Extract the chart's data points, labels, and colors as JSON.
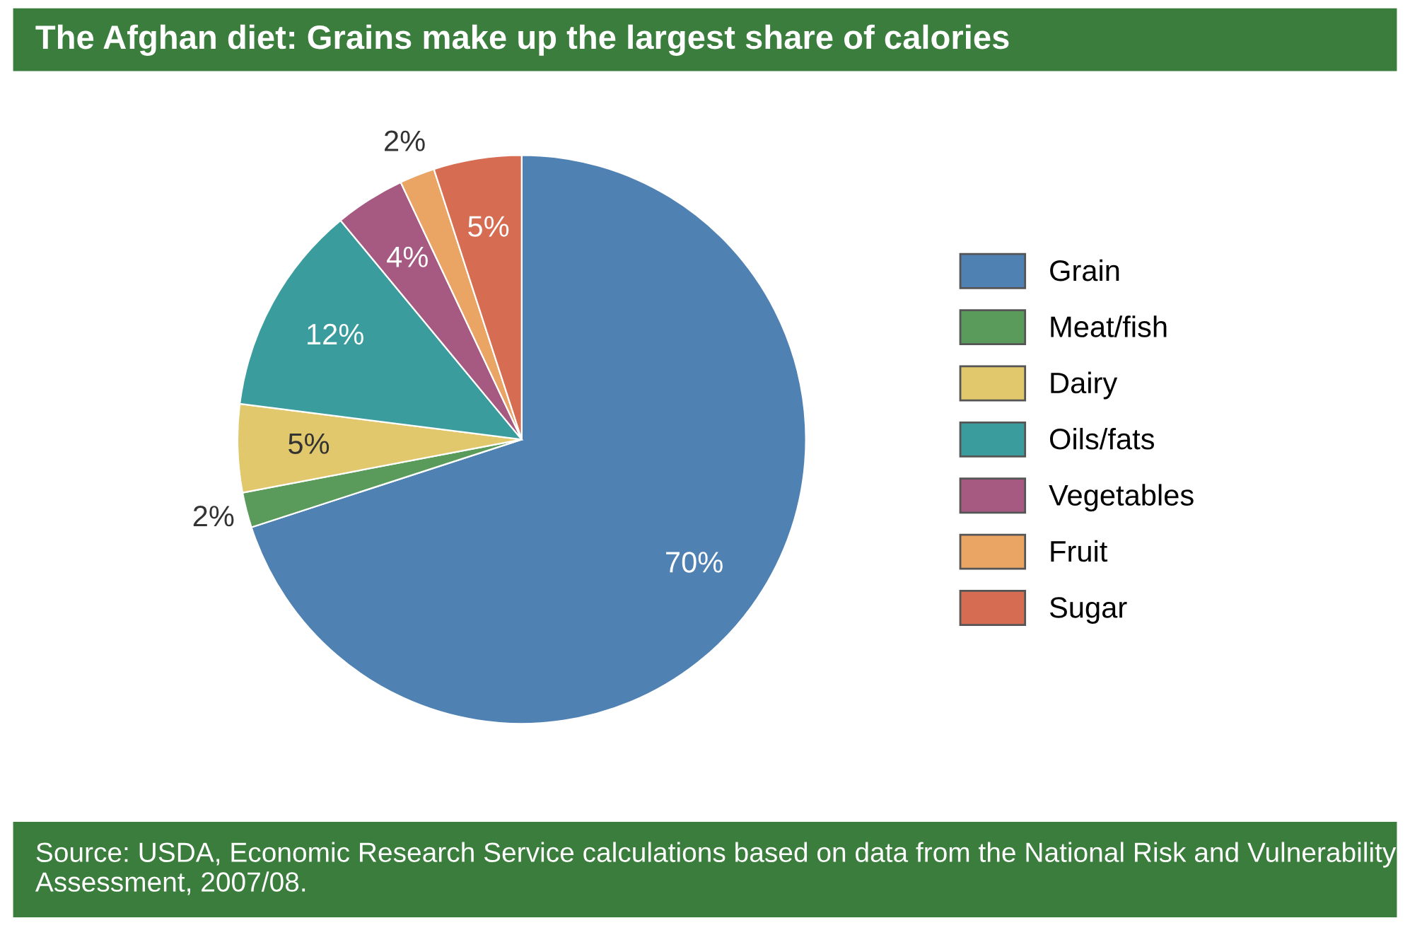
{
  "chart_data": {
    "type": "pie",
    "title": "The Afghan diet: Grains make up the largest share of calories",
    "categories": [
      "Grain",
      "Meat/fish",
      "Dairy",
      "Oils/fats",
      "Vegetables",
      "Fruit",
      "Sugar"
    ],
    "values": [
      70,
      2,
      5,
      12,
      4,
      2,
      5
    ],
    "colors": [
      "#4f81b3",
      "#5a9a5a",
      "#e2c86c",
      "#3a9c9c",
      "#a65a82",
      "#eaa464",
      "#d66c52"
    ],
    "value_labels": [
      "70%",
      "2%",
      "5%",
      "12%",
      "4%",
      "2%",
      "5%"
    ],
    "legend": "right",
    "annotations": [
      "Source: USDA, Economic Research Service calculations based on data from the National Risk and Vulnerability Assessment, 2007/08."
    ]
  }
}
